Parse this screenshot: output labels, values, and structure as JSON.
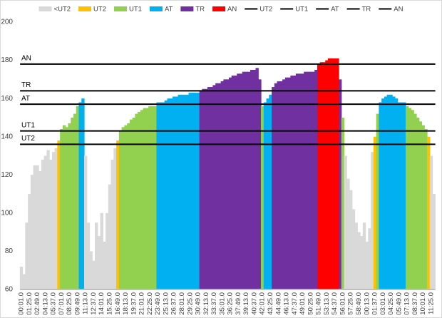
{
  "chart_data": {
    "type": "bar",
    "categories": [
      "00:01.0",
      null,
      null,
      "01:25.0",
      null,
      null,
      "02:49.0",
      null,
      null,
      "04:13.0",
      null,
      null,
      "05:37.0",
      null,
      null,
      "07:01.0",
      null,
      null,
      "08:25.0",
      null,
      null,
      "09:49.0",
      null,
      null,
      "11:13.0",
      null,
      null,
      "12:37.0",
      null,
      null,
      "14:01.0",
      null,
      null,
      "15:25.0",
      null,
      null,
      "16:49.0",
      null,
      null,
      "18:13.0",
      null,
      null,
      "19:37.0",
      null,
      null,
      "21:01.0",
      null,
      null,
      "22:25.0",
      null,
      null,
      "23:49.0",
      null,
      null,
      "25:13.0",
      null,
      null,
      "26:37.0",
      null,
      null,
      "28:01.0",
      null,
      null,
      "29:25.0",
      null,
      null,
      "30:49.0",
      null,
      null,
      "32:13.0",
      null,
      null,
      "33:37.0",
      null,
      null,
      "35:01.0",
      null,
      null,
      "36:25.0",
      null,
      null,
      "37:49.0",
      null,
      null,
      "39:13.0",
      null,
      null,
      "40:37.0",
      null,
      null,
      "42:01.0",
      null,
      null,
      "43:25.0",
      null,
      null,
      "44:49.0",
      null,
      null,
      "46:13.0",
      null,
      null,
      "47:37.0",
      null,
      null,
      "49:01.0",
      null,
      null,
      "50:25.0",
      null,
      null,
      "51:49.0",
      null,
      null,
      "53:13.0",
      null,
      null,
      "54:37.0",
      null,
      null,
      "56:01.0",
      null,
      null,
      "57:25.0",
      null,
      null,
      "58:49.0",
      null,
      null,
      "00:13.0",
      null,
      null,
      "01:37.0",
      null,
      null,
      "03:01.0",
      null,
      null,
      "04:25.0",
      null,
      null,
      "05:49.0",
      null,
      null,
      "07:13.0",
      null,
      null,
      "08:37.0",
      null,
      null,
      "10:01.0",
      null,
      null,
      "11:25.0",
      null
    ],
    "values": [
      72,
      68,
      95,
      110,
      120,
      125,
      125,
      122,
      128,
      130,
      133,
      128,
      132,
      134,
      138,
      144,
      146,
      145,
      147,
      150,
      152,
      156,
      158,
      160,
      130,
      95,
      80,
      75,
      95,
      88,
      100,
      85,
      100,
      115,
      128,
      134,
      138,
      143,
      145,
      146,
      147,
      149,
      150,
      152,
      153,
      154,
      155,
      155,
      156,
      156,
      156,
      158,
      158,
      158,
      159,
      160,
      160,
      161,
      161,
      162,
      162,
      162,
      162,
      163,
      163,
      163,
      163,
      164,
      165,
      165,
      166,
      166,
      167,
      168,
      168,
      169,
      170,
      170,
      171,
      172,
      172,
      173,
      173,
      174,
      174,
      174,
      175,
      175,
      176,
      170,
      156,
      158,
      160,
      162,
      166,
      168,
      169,
      169,
      170,
      171,
      171,
      172,
      172,
      173,
      173,
      173,
      174,
      174,
      174,
      174,
      175,
      178,
      179,
      179,
      180,
      181,
      181,
      181,
      181,
      170,
      150,
      130,
      118,
      112,
      102,
      95,
      90,
      88,
      95,
      85,
      92,
      132,
      140,
      152,
      158,
      160,
      161,
      162,
      162,
      161,
      160,
      158,
      158,
      158,
      156,
      155,
      154,
      152,
      150,
      148,
      146,
      144,
      140,
      130,
      110
    ],
    "zones": [
      {
        "name": "<UT2",
        "color": "#d9d9d9"
      },
      {
        "name": "UT2",
        "color": "#ffc000"
      },
      {
        "name": "UT1",
        "color": "#92d050"
      },
      {
        "name": "AT",
        "color": "#00b0f0"
      },
      {
        "name": "TR",
        "color": "#7030a0"
      },
      {
        "name": "AN",
        "color": "#ff0000"
      }
    ],
    "lines": [
      {
        "name": "UT2",
        "value": 136,
        "color": "#000000"
      },
      {
        "name": "UT1",
        "value": 143,
        "color": "#000000"
      },
      {
        "name": "AT",
        "value": 157,
        "color": "#000000"
      },
      {
        "name": "TR",
        "value": 164,
        "color": "#000000"
      },
      {
        "name": "AN",
        "value": 178,
        "color": "#000000"
      }
    ],
    "ylim": [
      60,
      200
    ],
    "yticks": [
      60,
      80,
      100,
      120,
      140,
      160,
      180,
      200
    ],
    "grid": false,
    "legend": "top"
  }
}
